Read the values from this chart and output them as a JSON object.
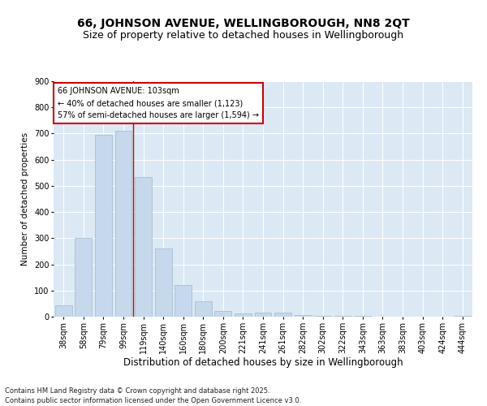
{
  "title1": "66, JOHNSON AVENUE, WELLINGBOROUGH, NN8 2QT",
  "title2": "Size of property relative to detached houses in Wellingborough",
  "xlabel": "Distribution of detached houses by size in Wellingborough",
  "ylabel": "Number of detached properties",
  "categories": [
    "38sqm",
    "58sqm",
    "79sqm",
    "99sqm",
    "119sqm",
    "140sqm",
    "160sqm",
    "180sqm",
    "200sqm",
    "221sqm",
    "241sqm",
    "261sqm",
    "282sqm",
    "302sqm",
    "322sqm",
    "343sqm",
    "363sqm",
    "383sqm",
    "403sqm",
    "424sqm",
    "444sqm"
  ],
  "values": [
    42,
    300,
    695,
    710,
    535,
    260,
    120,
    58,
    22,
    12,
    16,
    16,
    5,
    4,
    4,
    2,
    1,
    1,
    1,
    0,
    4
  ],
  "bar_color": "#c5d8ec",
  "bar_edge_color": "#a0b8d0",
  "vline_color": "#cc0000",
  "vline_x_index": 3.5,
  "annotation_text": "66 JOHNSON AVENUE: 103sqm\n← 40% of detached houses are smaller (1,123)\n57% of semi-detached houses are larger (1,594) →",
  "annotation_box_color": "#ffffff",
  "annotation_box_edge": "#cc0000",
  "ylim": [
    0,
    900
  ],
  "yticks": [
    0,
    100,
    200,
    300,
    400,
    500,
    600,
    700,
    800,
    900
  ],
  "bg_color": "#dce9f5",
  "fig_bg": "#ffffff",
  "footer": "Contains HM Land Registry data © Crown copyright and database right 2025.\nContains public sector information licensed under the Open Government Licence v3.0.",
  "title1_fontsize": 10,
  "title2_fontsize": 9,
  "xlabel_fontsize": 8.5,
  "ylabel_fontsize": 7.5,
  "tick_fontsize": 7,
  "annot_fontsize": 7,
  "footer_fontsize": 6
}
